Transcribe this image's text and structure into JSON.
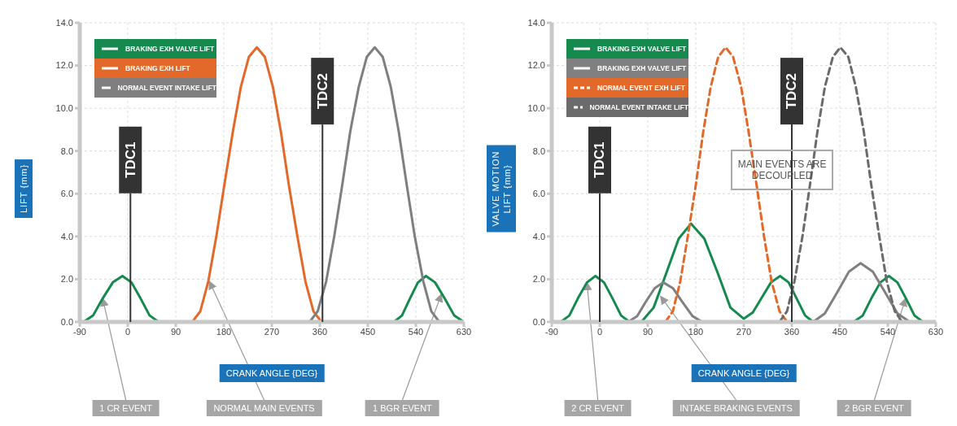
{
  "chart_data": [
    {
      "type": "line",
      "xlabel": "CRANK ANGLE {DEG}",
      "ylabel": "LIFT {mm}",
      "xlim": [
        -90,
        630
      ],
      "xticks": [
        -90,
        0,
        90,
        180,
        270,
        360,
        450,
        540,
        630
      ],
      "ylim": [
        0,
        14
      ],
      "yticks": [
        {
          "value": 0,
          "label": "0.0"
        },
        {
          "value": 2,
          "label": "2.0"
        },
        {
          "value": 4,
          "label": "4.0"
        },
        {
          "value": 6,
          "label": "6.0"
        },
        {
          "value": 8,
          "label": "8.0"
        },
        {
          "value": 10,
          "label": "10.0"
        },
        {
          "value": 12,
          "label": "12.0"
        },
        {
          "value": 14,
          "label": "14.0"
        }
      ],
      "grid": true,
      "legend": "top left",
      "line_style": "solid",
      "series": [
        {
          "name": "BRAKING EXH VALVE LIFT",
          "color": "#168a4e",
          "x": [
            -83,
            -65,
            -47,
            -28,
            -10,
            7,
            24,
            41,
            58,
            60,
            497,
            499,
            514,
            529,
            544,
            559,
            576,
            594,
            612,
            630
          ],
          "values": [
            0,
            0.3,
            1.1,
            1.85,
            2.15,
            1.85,
            1.1,
            0.3,
            0,
            null,
            null,
            0,
            0.3,
            1.1,
            1.85,
            2.15,
            1.85,
            1.1,
            0.3,
            0
          ]
        },
        {
          "name": "BRAKING EXH LIFT",
          "color": "#e2692a",
          "x": [
            121,
            136,
            151,
            166,
            181,
            197,
            212,
            227,
            242,
            257,
            272,
            287,
            302,
            318,
            333,
            348,
            363
          ],
          "values": [
            0,
            0.5,
            1.9,
            4.0,
            6.4,
            8.9,
            11.0,
            12.4,
            12.85,
            12.4,
            11.0,
            8.9,
            6.4,
            4.0,
            1.9,
            0.5,
            0
          ]
        },
        {
          "name": "NORMAL EVENT INTAKE LIFT",
          "color": "#7f7f7f",
          "x": [
            341,
            356,
            372,
            387,
            402,
            417,
            433,
            448,
            463,
            478,
            493,
            508,
            523,
            538,
            554,
            569,
            584
          ],
          "values": [
            0,
            0.5,
            1.9,
            4.0,
            6.4,
            8.9,
            11.0,
            12.4,
            12.85,
            12.4,
            11.0,
            8.9,
            6.4,
            4.0,
            1.9,
            0.5,
            0
          ]
        }
      ],
      "ref_lines": [
        {
          "axis": "x",
          "value": 5,
          "label": "TDC1",
          "color": "#333333"
        },
        {
          "axis": "x",
          "value": 365,
          "label": "TDC2",
          "color": "#333333"
        }
      ],
      "annotations": [
        {
          "text": "1 CR EVENT",
          "x": -47,
          "y": 1.1
        },
        {
          "text": "NORMAL MAIN EVENTS",
          "x": 153,
          "y": 1.9
        },
        {
          "text": "1 BGR EVENT",
          "x": 588,
          "y": 1.3
        }
      ]
    },
    {
      "type": "line",
      "xlabel": "CRANK ANGLE {DEG}",
      "ylabel": "VALVE MOTION LIFT {mm}",
      "xlim": [
        -90,
        630
      ],
      "xticks": [
        -90,
        0,
        90,
        180,
        270,
        360,
        450,
        540,
        630
      ],
      "ylim": [
        0,
        14
      ],
      "yticks": [
        {
          "value": 0,
          "label": "0.0"
        },
        {
          "value": 2,
          "label": "2.0"
        },
        {
          "value": 4,
          "label": "4.0"
        },
        {
          "value": 6,
          "label": "6.0"
        },
        {
          "value": 8,
          "label": "8.0"
        },
        {
          "value": 10,
          "label": "10.0"
        },
        {
          "value": 12,
          "label": "12.0"
        },
        {
          "value": 14,
          "label": "14.0"
        }
      ],
      "grid": true,
      "legend": "top left",
      "line_style": "solid",
      "series": [
        {
          "name": "BRAKING EXH VALVE LIFT",
          "color": "#168a4e",
          "x": [
            -73,
            -57,
            -41,
            -24,
            -8,
            8,
            24,
            40,
            56,
            60,
            75,
            78,
            101,
            125,
            148,
            171,
            196,
            221,
            245,
            270,
            287,
            304,
            321,
            338,
            354,
            369,
            385,
            400,
            405,
            470,
            476,
            493,
            509,
            526,
            542,
            558,
            574,
            590,
            606
          ],
          "values": [
            0,
            0.3,
            1.1,
            1.85,
            2.15,
            1.85,
            1.1,
            0.3,
            0,
            null,
            null,
            0,
            0.67,
            2.3,
            3.9,
            4.6,
            3.9,
            2.3,
            0.67,
            0.15,
            0.45,
            1.15,
            1.85,
            2.15,
            1.85,
            1.1,
            0.3,
            0,
            null,
            null,
            0,
            0.3,
            1.1,
            1.85,
            2.15,
            1.85,
            1.1,
            0.3,
            0
          ]
        },
        {
          "name": "BRAKING EXH VALVE LIFT",
          "color": "#808080",
          "x": [
            53,
            70,
            86,
            103,
            119,
            137,
            155,
            174,
            192,
            195,
            397,
            400,
            422,
            445,
            467,
            489,
            512,
            535,
            558,
            581
          ],
          "values": [
            0,
            0.27,
            0.93,
            1.58,
            1.85,
            1.58,
            0.93,
            0.27,
            0,
            null,
            null,
            0,
            0.4,
            1.38,
            2.35,
            2.75,
            2.35,
            1.38,
            0.4,
            0
          ]
        },
        {
          "name": "NORMAL EVENT EXH LIFT",
          "color": "#e2692a",
          "line_style": "dashed",
          "x": [
            123,
            137,
            151,
            165,
            180,
            194,
            208,
            222,
            236,
            250,
            265,
            279,
            294,
            308,
            322,
            337,
            351
          ],
          "values": [
            0,
            0.5,
            1.9,
            4.0,
            6.4,
            8.9,
            11.0,
            12.4,
            12.85,
            12.4,
            11.0,
            8.9,
            6.4,
            4.0,
            1.9,
            0.5,
            0
          ]
        },
        {
          "name": "NORMAL EVENT INTAKE LIFT",
          "color": "#6b6b6b",
          "line_style": "dashed",
          "x": [
            337,
            351,
            365,
            380,
            394,
            408,
            422,
            437,
            451,
            466,
            480,
            495,
            509,
            524,
            538,
            553,
            567
          ],
          "values": [
            0,
            0.5,
            1.9,
            4.0,
            6.4,
            8.9,
            11.0,
            12.4,
            12.85,
            12.4,
            11.0,
            8.9,
            6.4,
            4.0,
            1.9,
            0.5,
            0
          ]
        }
      ],
      "ref_lines": [
        {
          "axis": "x",
          "value": 0,
          "label": "TDC1",
          "color": "#333333"
        },
        {
          "axis": "x",
          "value": 360,
          "label": "TDC2",
          "color": "#333333"
        }
      ],
      "annotations": [
        "MAIN EVENTS ARE DECOUPLED",
        {
          "text": "2 CR EVENT",
          "x": -24,
          "y": 1.85
        },
        {
          "text": "INTAKE BRAKING EVENTS",
          "x": 114,
          "y": 1.2
        },
        {
          "text": "2 BGR EVENT",
          "x": 573,
          "y": 1.1
        }
      ]
    }
  ]
}
